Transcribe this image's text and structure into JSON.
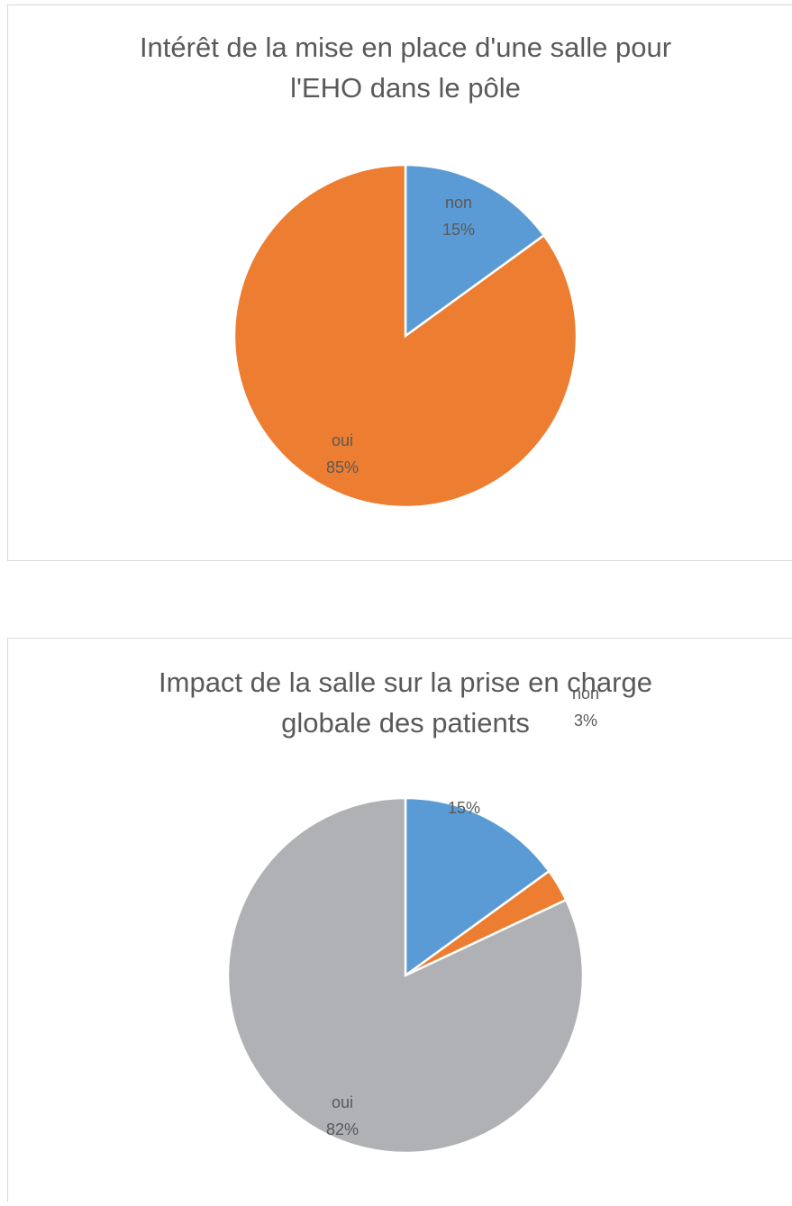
{
  "chart_data": [
    {
      "type": "pie",
      "title": "Intérêt de la mise en place d'une salle pour l'EHO dans le pôle",
      "title_lines": [
        "Intérêt de la mise en place d'une salle pour",
        "l'EHO dans le pôle"
      ],
      "categories": [
        "non",
        "oui"
      ],
      "values": [
        15,
        85
      ],
      "value_labels": [
        "15%",
        "85%"
      ],
      "colors": [
        "#5b9bd5",
        "#ed7d31"
      ]
    },
    {
      "type": "pie",
      "title": "Impact de la salle sur la prise en charge globale des patients",
      "title_lines": [
        "Impact de la salle sur la prise en charge",
        "globale des patients"
      ],
      "categories": [
        null,
        "non",
        "oui"
      ],
      "values": [
        15,
        3,
        82
      ],
      "value_labels": [
        "15%",
        "3%",
        "82%"
      ],
      "colors": [
        "#5b9bd5",
        "#ed7d31",
        "#b0b1b4"
      ]
    }
  ]
}
